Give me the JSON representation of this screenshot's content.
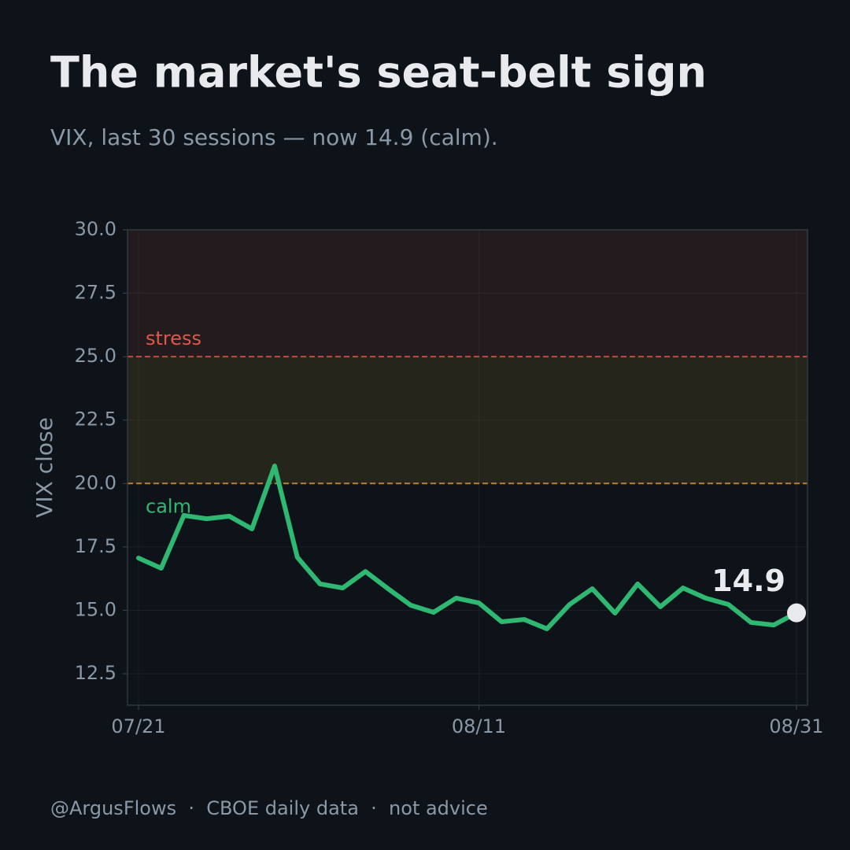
{
  "chart_data": {
    "type": "line",
    "title": "The market's seat-belt sign",
    "subtitle": "VIX, last 30 sessions — now 14.9 (calm).",
    "ylabel": "VIX close",
    "footer": "@ArgusFlows  ·  CBOE daily data  ·  not advice",
    "categories": [
      "07/21",
      null,
      null,
      null,
      null,
      null,
      null,
      null,
      null,
      null,
      null,
      null,
      null,
      null,
      null,
      "08/11",
      null,
      null,
      null,
      null,
      null,
      null,
      null,
      null,
      null,
      null,
      null,
      null,
      null,
      "08/31"
    ],
    "series": [
      {
        "name": "VIX",
        "color": "#2fb872",
        "values": [
          17.06,
          16.66,
          18.74,
          18.61,
          18.71,
          18.21,
          20.69,
          17.09,
          16.04,
          15.88,
          16.53,
          15.85,
          15.2,
          14.92,
          15.48,
          15.29,
          14.55,
          14.64,
          14.27,
          15.23,
          15.85,
          14.89,
          16.04,
          15.14,
          15.88,
          15.48,
          15.23,
          14.52,
          14.42,
          14.9
        ]
      }
    ],
    "thresholds": [
      {
        "value": 20,
        "label": "calm",
        "color": "#d4913a",
        "label_color": "#2fb872",
        "band_color": "#26251c"
      },
      {
        "value": 25,
        "label": "stress",
        "color": "#d9534a",
        "label_color": "#e0574a",
        "band_color": "#241b1e"
      }
    ],
    "ylim": [
      11.26,
      30
    ],
    "yticks": [
      12.5,
      {
        "value": 15,
        "label": "15.0"
      },
      17.5,
      {
        "value": 20,
        "label": "20.0"
      },
      22.5,
      {
        "value": 25,
        "label": "25.0"
      },
      27.5,
      {
        "value": 30,
        "label": "30.0"
      }
    ],
    "grid": true
  }
}
